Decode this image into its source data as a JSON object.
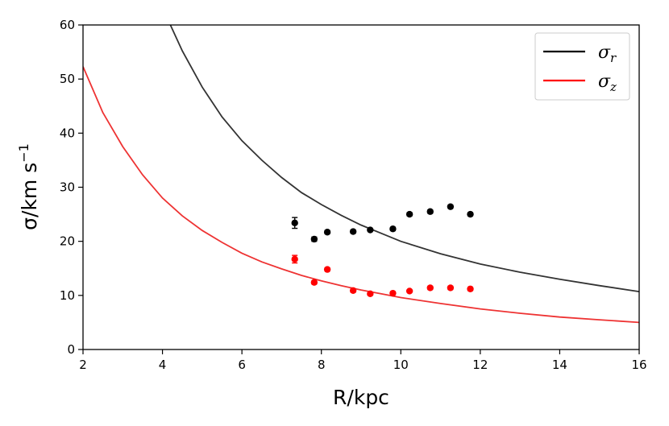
{
  "chart_data": {
    "type": "line",
    "title": "",
    "xlabel": "R/kpc",
    "ylabel_base": "σ/km s",
    "ylabel_exp": "−1",
    "xlim": [
      2,
      16
    ],
    "ylim": [
      0,
      60
    ],
    "xticks": [
      2,
      4,
      6,
      8,
      10,
      12,
      14,
      16
    ],
    "yticks": [
      0,
      10,
      20,
      30,
      40,
      50,
      60
    ],
    "grid": false,
    "legend_position": "top-right",
    "model_curves": [
      {
        "name": "σ_r",
        "legend_symbol": "σ",
        "legend_subscript": "r",
        "color": "#333333",
        "x": [
          4.2,
          4.5,
          5.0,
          5.5,
          6.0,
          6.5,
          7.0,
          7.5,
          8.0,
          8.5,
          9.0,
          9.5,
          10.0,
          11.0,
          12.0,
          13.0,
          14.0,
          15.0,
          16.0
        ],
        "y": [
          60.0,
          55.2,
          48.5,
          43.0,
          38.6,
          35.0,
          31.8,
          29.0,
          26.8,
          24.8,
          23.0,
          21.5,
          20.0,
          17.7,
          15.8,
          14.3,
          13.0,
          11.8,
          10.7
        ]
      },
      {
        "name": "σ_z",
        "legend_symbol": "σ",
        "legend_subscript": "z",
        "color": "#ee3333",
        "x": [
          2.0,
          2.5,
          3.0,
          3.5,
          4.0,
          4.5,
          5.0,
          5.5,
          6.0,
          6.5,
          7.0,
          7.5,
          8.0,
          8.5,
          9.0,
          9.5,
          10.0,
          11.0,
          12.0,
          13.0,
          14.0,
          15.0,
          16.0
        ],
        "y": [
          52.3,
          43.8,
          37.5,
          32.3,
          28.0,
          24.7,
          22.0,
          19.8,
          17.8,
          16.2,
          14.9,
          13.7,
          12.7,
          11.8,
          11.0,
          10.3,
          9.6,
          8.5,
          7.5,
          6.7,
          6.0,
          5.5,
          5.0
        ]
      }
    ],
    "observed": [
      {
        "name": "σ_r data",
        "color": "#000000",
        "x": [
          7.33,
          7.82,
          8.15,
          8.8,
          9.23,
          9.8,
          10.22,
          10.74,
          11.25,
          11.75
        ],
        "y": [
          23.4,
          20.4,
          21.7,
          21.8,
          22.1,
          22.3,
          25.0,
          25.5,
          26.4,
          25.0
        ],
        "yerr": [
          1.0,
          0.4,
          0.3,
          0.3,
          0.2,
          0.3,
          0.3,
          0.3,
          0.3,
          0.3
        ]
      },
      {
        "name": "σ_z data",
        "color": "#ff0000",
        "x": [
          7.33,
          7.82,
          8.15,
          8.8,
          9.23,
          9.8,
          10.22,
          10.74,
          11.25,
          11.75
        ],
        "y": [
          16.7,
          12.4,
          14.8,
          10.9,
          10.3,
          10.4,
          10.8,
          11.4,
          11.4,
          11.2
        ],
        "yerr": [
          0.7,
          0.3,
          0.3,
          0.3,
          0.2,
          0.2,
          0.2,
          0.3,
          0.3,
          0.3
        ]
      }
    ]
  }
}
